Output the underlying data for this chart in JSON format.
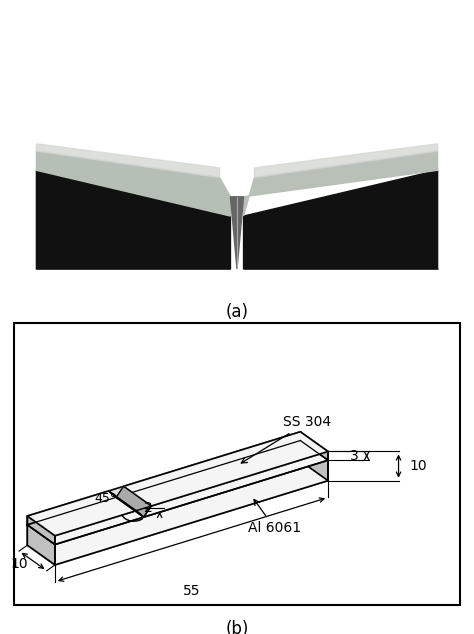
{
  "fig_width": 4.74,
  "fig_height": 6.34,
  "dpi": 100,
  "bg_color": "#ffffff",
  "label_a": "(a)",
  "label_b": "(b)",
  "label_ss304": "SS 304",
  "label_al6061": "Al 6061",
  "dim_55": "55",
  "dim_10_width": "10",
  "dim_10_height": "10",
  "dim_3": "3",
  "dim_2": "2",
  "dim_45": "45°",
  "photo_bg": "#8B0000",
  "specimen_dark": "#111111",
  "specimen_silver": "#c8c8c8",
  "specimen_light": "#e0e0e0",
  "notch_color": "#444444",
  "line_color": "#000000",
  "face_white": "#f5f5f5",
  "face_light_gray": "#e0e0e0",
  "face_mid_gray": "#c0c0c0"
}
